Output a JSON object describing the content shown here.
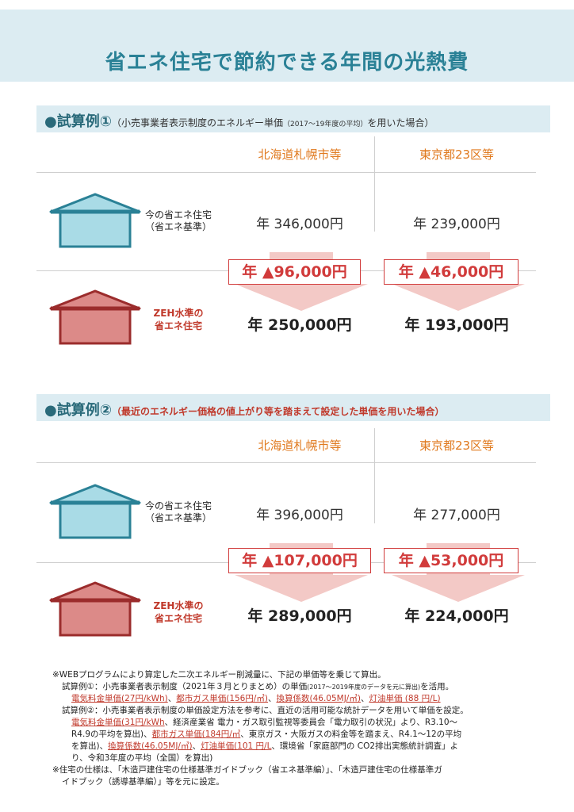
{
  "title": "省エネ住宅で節約できる年間の光熱費",
  "rows": {
    "now_line1": "今の省エネ住宅",
    "now_line2": "（省エネ基準）",
    "zeh_line1": "ZEH水準の",
    "zeh_line2": "省エネ住宅"
  },
  "case1": {
    "bullet": "●",
    "heading": "試算例①",
    "sub_a": "（小売事業者表示制度のエネルギー単価",
    "sub_small": "（2017～19年度の平均）",
    "sub_b": "を用いた場合）",
    "cities": [
      "北海道札幌市等",
      "東京都23区等"
    ],
    "now": [
      "年 346,000円",
      "年 239,000円"
    ],
    "savings": [
      "年 ▲96,000円",
      "年 ▲46,000円"
    ],
    "zeh": [
      "年 250,000円",
      "年 193,000円"
    ]
  },
  "case2": {
    "bullet": "●",
    "heading": "試算例②",
    "sub": "（最近のエネルギー価格の値上がり等を踏まえて設定した単価を用いた場合）",
    "cities": [
      "北海道札幌市等",
      "東京都23区等"
    ],
    "now": [
      "年 396,000円",
      "年 277,000円"
    ],
    "savings": [
      "年 ▲107,000円",
      "年 ▲53,000円"
    ],
    "zeh": [
      "年 289,000円",
      "年 224,000円"
    ]
  },
  "notes": {
    "n1": "※WEBプログラムにより算定した二次エネルギー削減量に、下記の単価等を乗じて算出。",
    "n2a": "試算例①：小売事業者表示制度（2021年３月とりまとめ）の単価",
    "n2small": "(2017～2019年度のデータを元に算出)",
    "n2b": "を活用。",
    "n3": [
      "電気料金単価(27円/kWh)",
      "、",
      "都市ガス単価(156円/㎥)",
      "、",
      "換算係数(46.05MJ/㎥)",
      "、",
      "灯油単価 (88 円/L)"
    ],
    "n4": "試算例②：小売事業者表示制度の単価設定方法を参考に、直近の活用可能な統計データを用いて単価を設定。",
    "n5a": "電気料金単価(31円/kWh",
    "n5b": "、経済産業省 電力・ガス取引監視等委員会「電力取引の状況」より、R3.10～",
    "n6a": "R4.9の平均を算出)、",
    "n6b": "都市ガス単価(184円/㎥",
    "n6c": "、東京ガス・大阪ガスの料金等を踏まえ、R4.1～12の平均",
    "n7a": "を算出)、",
    "n7b": "換算係数(46.05MJ/㎥)",
    "n7c": "、",
    "n7d": "灯油単価(101 円/L",
    "n7e": "、環境省「家庭部門の CO2排出実態統計調査」よ",
    "n8": "り、令和3年度の平均（全国）を算出)",
    "n9": "※住宅の仕様は、「木造戸建住宅の仕様基準ガイドブック（省エネ基準編）」、「木造戸建住宅の仕様基準ガ",
    "n10": "イドブック（誘導基準編）」等を元に設定。"
  },
  "colors": {
    "teal": "#2a8196",
    "band": "#dcecf2",
    "orange": "#e07a1f",
    "red": "#d13b3b",
    "house_blue": "#a9dbe6",
    "house_red": "#dc8a88"
  }
}
